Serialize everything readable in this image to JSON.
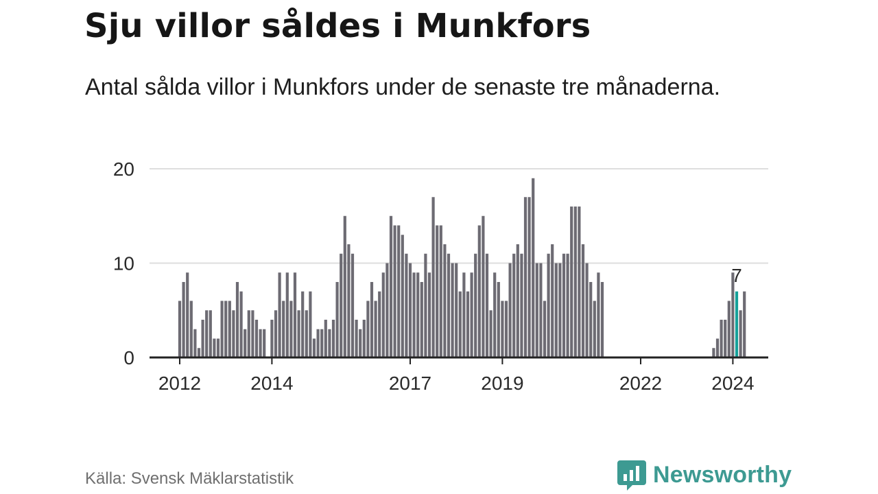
{
  "title": "Sju villor såldes i Munkfors",
  "subtitle": "Antal sålda villor i Munkfors under de senaste tre månaderna.",
  "source": "Källa: Svensk Mäklarstatistik",
  "brand": {
    "name": "Newsworthy",
    "color": "#3d9a92"
  },
  "colors": {
    "bar": "#6d6b73",
    "highlight": "#15a19a",
    "grid": "#dedede",
    "axis": "#222222"
  },
  "chart_data": {
    "type": "bar",
    "title": "Sju villor såldes i Munkfors",
    "xlabel": "",
    "ylabel": "",
    "ylim": [
      0,
      20
    ],
    "yticks": [
      0,
      10,
      20
    ],
    "xticks": [
      {
        "label": "2012",
        "index": 0
      },
      {
        "label": "2014",
        "index": 24
      },
      {
        "label": "2017",
        "index": 60
      },
      {
        "label": "2019",
        "index": 84
      },
      {
        "label": "2022",
        "index": 120
      },
      {
        "label": "2024",
        "index": 144
      }
    ],
    "start": "2012-01",
    "frequency": "monthly",
    "values": [
      6,
      8,
      9,
      6,
      3,
      1,
      4,
      5,
      5,
      2,
      2,
      6,
      6,
      6,
      5,
      8,
      7,
      3,
      5,
      5,
      4,
      3,
      3,
      0,
      4,
      5,
      9,
      6,
      9,
      6,
      9,
      5,
      7,
      5,
      7,
      2,
      3,
      3,
      4,
      3,
      4,
      8,
      11,
      15,
      12,
      11,
      4,
      3,
      4,
      6,
      8,
      6,
      7,
      9,
      10,
      15,
      14,
      14,
      13,
      11,
      10,
      9,
      9,
      8,
      11,
      9,
      17,
      14,
      14,
      12,
      11,
      10,
      10,
      7,
      9,
      7,
      9,
      11,
      14,
      15,
      11,
      5,
      9,
      8,
      6,
      6,
      10,
      11,
      12,
      11,
      17,
      17,
      19,
      10,
      10,
      6,
      11,
      12,
      10,
      10,
      11,
      11,
      16,
      16,
      16,
      12,
      10,
      8,
      6,
      9,
      8,
      0,
      0,
      0,
      0,
      0,
      0,
      0,
      0,
      0,
      0,
      0,
      0,
      0,
      0,
      0,
      0,
      0,
      0,
      0,
      0,
      0,
      0,
      0,
      0,
      0,
      0,
      0,
      0,
      1,
      2,
      4,
      4,
      6,
      9,
      7,
      5,
      7
    ],
    "highlight": {
      "index": 145,
      "value": 7,
      "label": "7"
    }
  }
}
